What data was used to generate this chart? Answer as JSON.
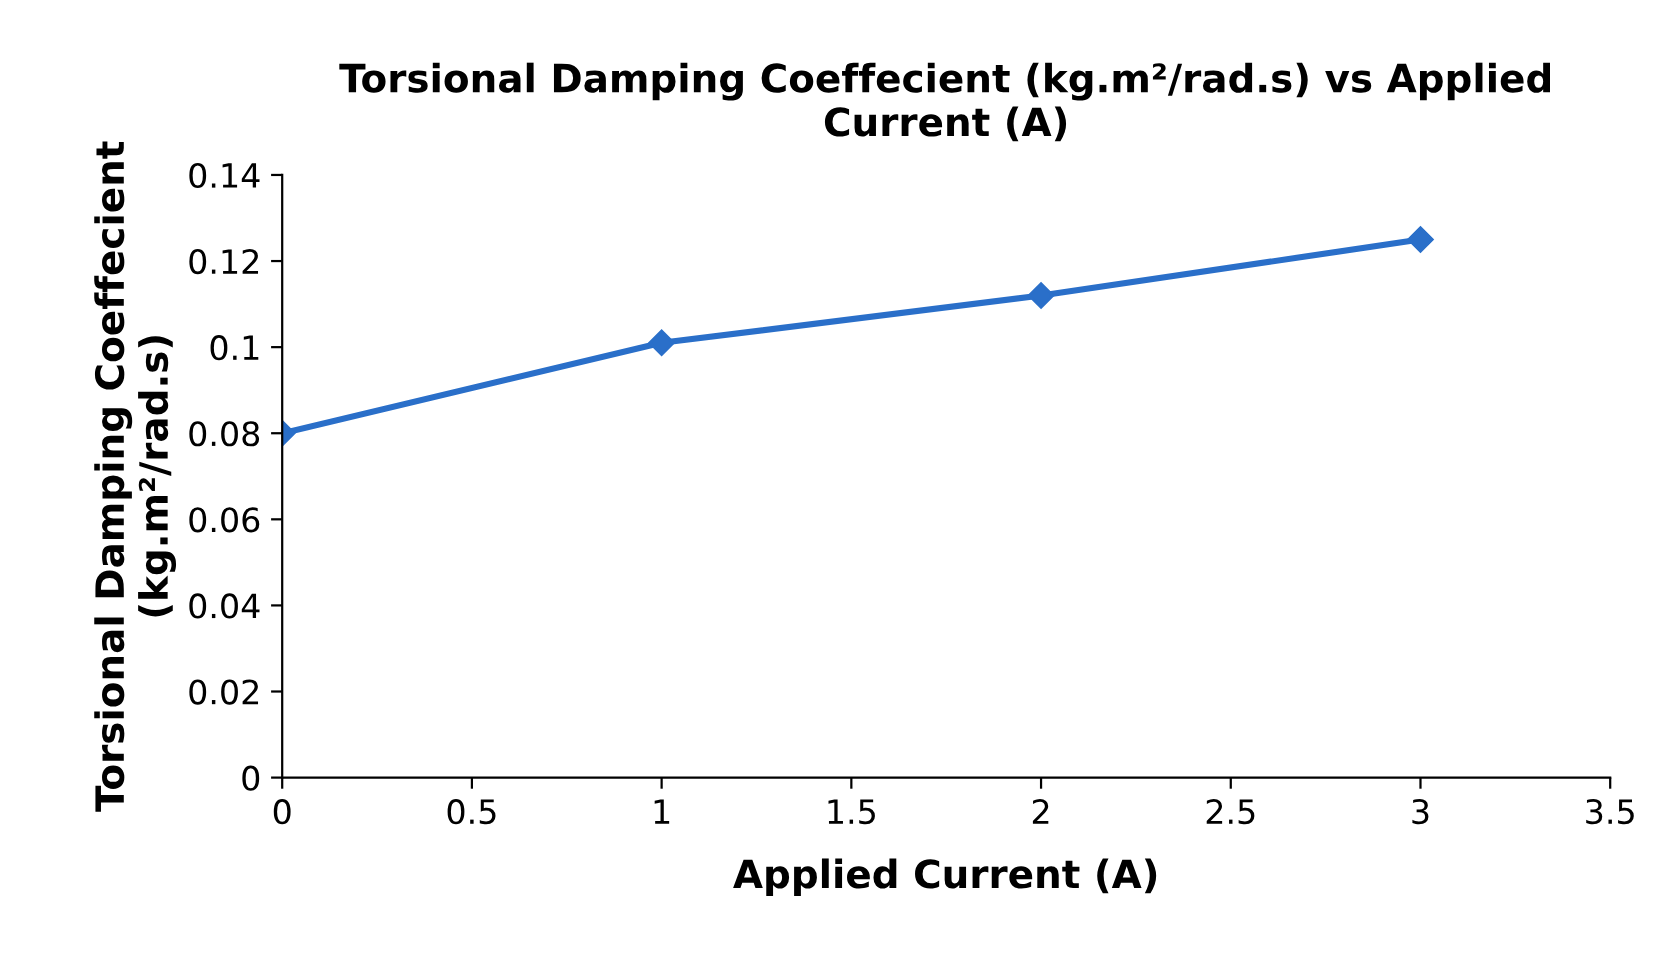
{
  "chart_data": {
    "type": "line",
    "title": "Torsional Damping Coeffecient (kg.m²/rad.s) vs Applied\nCurrent (A)",
    "xlabel": "Applied Current (A)",
    "ylabel": "Torsional Damping Coeffecient\n(kg.m²/rad.s)",
    "x": [
      0,
      1,
      2,
      3
    ],
    "series": [
      {
        "color": "#2a6fc9",
        "values": [
          0.08,
          0.101,
          0.112,
          0.125
        ]
      }
    ],
    "xlim": [
      0,
      3.5
    ],
    "xticks": [
      0,
      0.5,
      1,
      1.5,
      2,
      2.5,
      3,
      3.5
    ],
    "ylim": [
      0,
      0.14
    ],
    "yticks": [
      0,
      0.02,
      0.04,
      0.06,
      0.08,
      0.1,
      0.12,
      0.14
    ],
    "grid": false,
    "legend": false,
    "marker": "diamond",
    "line_style": "solid"
  }
}
